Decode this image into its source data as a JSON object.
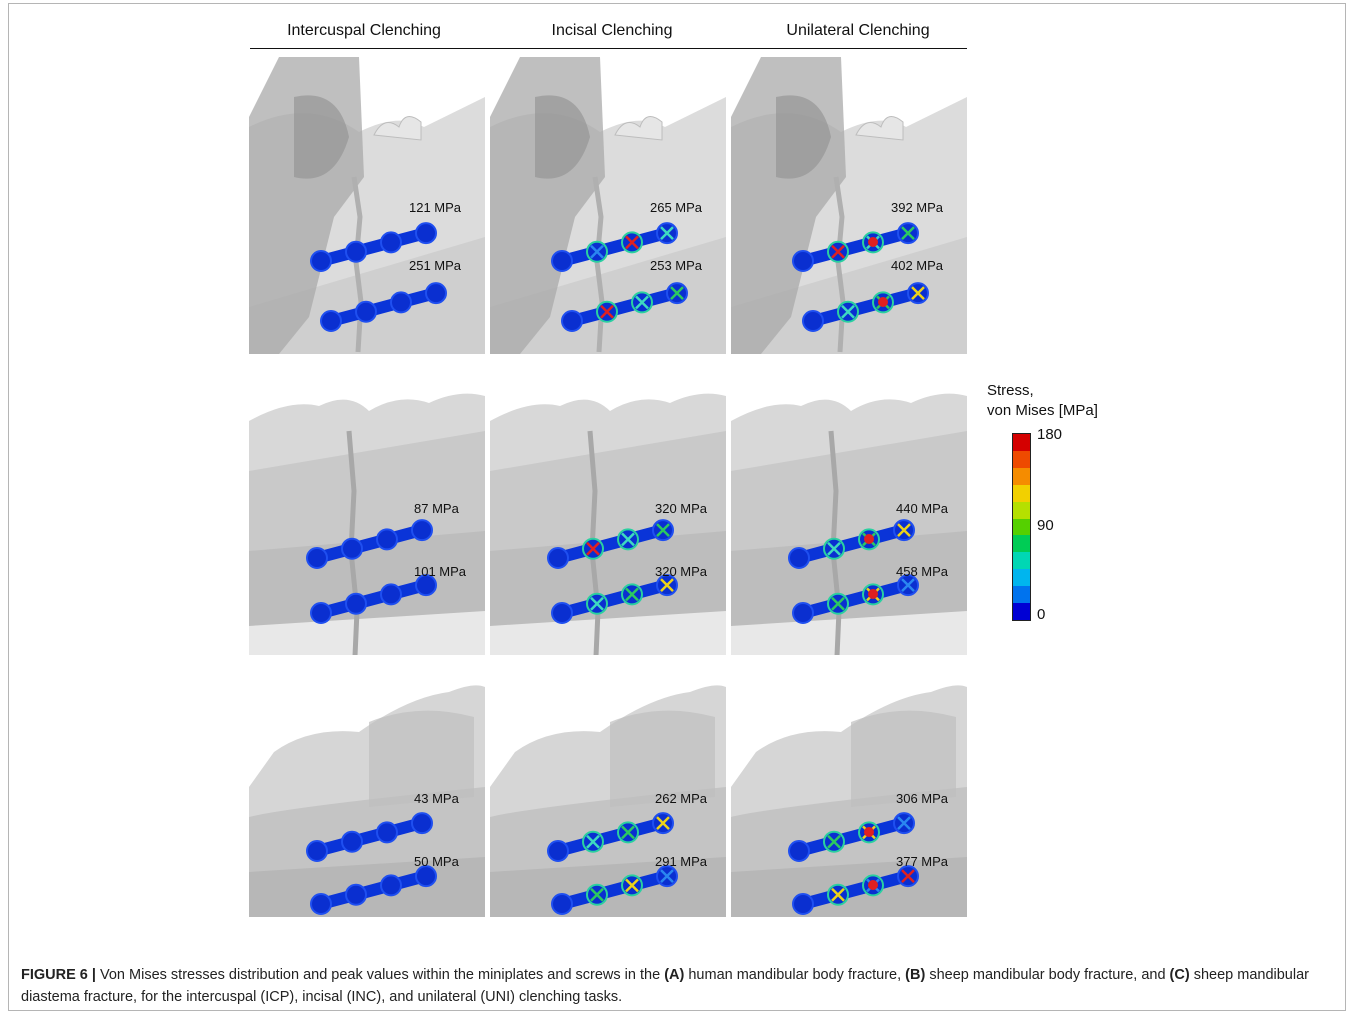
{
  "columns": [
    "Intercuspal Clenching",
    "Incisal Clenching",
    "Unilateral Clenching"
  ],
  "rows": [
    {
      "letter": "A",
      "model": "human",
      "peaks": [
        [
          "121 MPa",
          "251 MPa"
        ],
        [
          "265 MPa",
          "253 MPa"
        ],
        [
          "392 MPa",
          "402 MPa"
        ]
      ]
    },
    {
      "letter": "B",
      "model": "sheep-body",
      "peaks": [
        [
          "87 MPa",
          "101 MPa"
        ],
        [
          "320 MPa",
          "320 MPa"
        ],
        [
          "440 MPa",
          "458 MPa"
        ]
      ]
    },
    {
      "letter": "C",
      "model": "sheep-diastema",
      "peaks": [
        [
          "43 MPa",
          "50 MPa"
        ],
        [
          "262 MPa",
          "291 MPa"
        ],
        [
          "306 MPa",
          "377 MPa"
        ]
      ]
    }
  ],
  "legend": {
    "title_line1": "Stress,",
    "title_line2": "von Mises [MPa]",
    "max": "180",
    "mid": "90",
    "min": "0",
    "colors": [
      "#d40000",
      "#ee4a00",
      "#f58c00",
      "#f2d000",
      "#b5e000",
      "#55d000",
      "#00cc55",
      "#00d7b4",
      "#00b5ee",
      "#0073ee",
      "#0000d4"
    ]
  },
  "caption": {
    "label": "FIGURE 6 |",
    "t1": " Von Mises stresses distribution and peak values within the miniplates and screws in the ",
    "a": "(A)",
    "t2": " human mandibular body fracture, ",
    "b": "(B)",
    "t3": " sheep mandibular body fracture, and ",
    "c": "(C)",
    "t4": " sheep mandibular diastema fracture, for the intercuspal (ICP), incisal (INC), and unilateral (UNI) clenching tasks."
  }
}
